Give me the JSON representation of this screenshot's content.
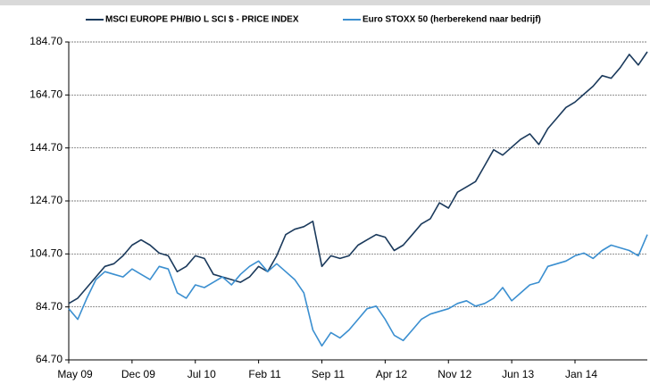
{
  "chart_data": {
    "type": "line",
    "x": [
      "2009-05",
      "2009-06",
      "2009-07",
      "2009-08",
      "2009-09",
      "2009-10",
      "2009-11",
      "2009-12",
      "2010-01",
      "2010-02",
      "2010-03",
      "2010-04",
      "2010-05",
      "2010-06",
      "2010-07",
      "2010-08",
      "2010-09",
      "2010-10",
      "2010-11",
      "2010-12",
      "2011-01",
      "2011-02",
      "2011-03",
      "2011-04",
      "2011-05",
      "2011-06",
      "2011-07",
      "2011-08",
      "2011-09",
      "2011-10",
      "2011-11",
      "2011-12",
      "2012-01",
      "2012-02",
      "2012-03",
      "2012-04",
      "2012-05",
      "2012-06",
      "2012-07",
      "2012-08",
      "2012-09",
      "2012-10",
      "2012-11",
      "2012-12",
      "2013-01",
      "2013-02",
      "2013-03",
      "2013-04",
      "2013-05",
      "2013-06",
      "2013-07",
      "2013-08",
      "2013-09",
      "2013-10",
      "2013-11",
      "2013-12",
      "2014-01",
      "2014-02",
      "2014-03",
      "2014-04",
      "2014-05",
      "2014-06",
      "2014-07",
      "2014-08",
      "2014-09"
    ],
    "series": [
      {
        "name": "MSCI EUROPE PH/BIO L SCI $ - PRICE INDEX",
        "color": "#1b3a5c",
        "values": [
          86,
          88,
          92,
          96,
          100,
          101,
          104,
          108,
          110,
          108,
          105,
          104,
          98,
          100,
          104,
          103,
          97,
          96,
          95,
          94,
          96,
          100,
          98,
          104,
          112,
          114,
          115,
          117,
          100,
          104,
          103,
          104,
          108,
          110,
          112,
          111,
          106,
          108,
          112,
          116,
          118,
          124,
          122,
          128,
          130,
          132,
          138,
          144,
          142,
          145,
          148,
          150,
          146,
          152,
          156,
          160,
          162,
          165,
          168,
          172,
          171,
          175,
          180,
          176,
          181
        ]
      },
      {
        "name": "Euro STOXX 50 (herberekend naar bedrijf)",
        "color": "#3b8fd0",
        "values": [
          84,
          80,
          88,
          95,
          98,
          97,
          96,
          99,
          97,
          95,
          100,
          99,
          90,
          88,
          93,
          92,
          94,
          96,
          93,
          97,
          100,
          102,
          98,
          101,
          98,
          95,
          90,
          76,
          70,
          75,
          73,
          76,
          80,
          84,
          85,
          80,
          74,
          72,
          76,
          80,
          82,
          83,
          84,
          86,
          87,
          85,
          86,
          88,
          92,
          87,
          90,
          93,
          94,
          100,
          101,
          102,
          104,
          105,
          103,
          106,
          108,
          107,
          106,
          104,
          112
        ]
      }
    ],
    "xlim": [
      "2009-05",
      "2014-09"
    ],
    "xticks": [
      {
        "value": "2009-05",
        "label": "May 09"
      },
      {
        "value": "2009-12",
        "label": "Dec 09"
      },
      {
        "value": "2010-07",
        "label": "Jul 10"
      },
      {
        "value": "2011-02",
        "label": "Feb 11"
      },
      {
        "value": "2011-09",
        "label": "Sep 11"
      },
      {
        "value": "2012-04",
        "label": "Apr 12"
      },
      {
        "value": "2012-11",
        "label": "Nov 12"
      },
      {
        "value": "2013-06",
        "label": "Jun 13"
      },
      {
        "value": "2014-01",
        "label": "Jan 14"
      }
    ],
    "ylim": [
      64.7,
      184.7
    ],
    "yticks": [
      {
        "value": 64.7,
        "label": "64.70"
      },
      {
        "value": 84.7,
        "label": "84.70"
      },
      {
        "value": 104.7,
        "label": "104.70"
      },
      {
        "value": 124.7,
        "label": "124.70"
      },
      {
        "value": 144.7,
        "label": "144.70"
      },
      {
        "value": 164.7,
        "label": "164.70"
      },
      {
        "value": 184.7,
        "label": "184.70"
      }
    ],
    "grid": true,
    "legend": "top"
  }
}
